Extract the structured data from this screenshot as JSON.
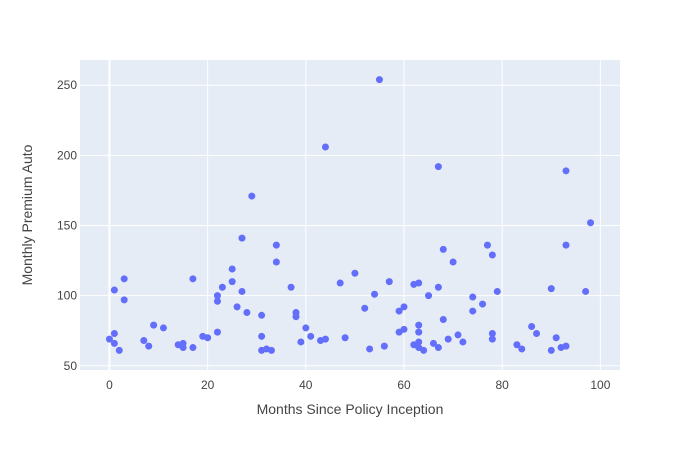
{
  "chart_data": {
    "type": "scatter",
    "title": "",
    "xlabel": "Months Since Policy Inception",
    "ylabel": "Monthly Premium Auto",
    "xlim": [
      -6,
      104
    ],
    "ylim": [
      47,
      268
    ],
    "x_ticks": [
      0,
      20,
      40,
      60,
      80,
      100
    ],
    "y_ticks": [
      50,
      100,
      150,
      200,
      250
    ],
    "grid": true,
    "background": "#e5ecf6",
    "marker_color": "#636efa",
    "series": [
      {
        "points": [
          [
            0,
            69
          ],
          [
            1,
            104
          ],
          [
            1,
            73
          ],
          [
            1,
            66
          ],
          [
            2,
            61
          ],
          [
            3,
            112
          ],
          [
            3,
            97
          ],
          [
            7,
            68
          ],
          [
            8,
            64
          ],
          [
            9,
            79
          ],
          [
            11,
            77
          ],
          [
            14,
            65
          ],
          [
            15,
            66
          ],
          [
            15,
            63
          ],
          [
            17,
            112
          ],
          [
            17,
            63
          ],
          [
            19,
            71
          ],
          [
            20,
            70
          ],
          [
            22,
            100
          ],
          [
            22,
            96
          ],
          [
            22,
            74
          ],
          [
            23,
            106
          ],
          [
            25,
            119
          ],
          [
            25,
            110
          ],
          [
            26,
            92
          ],
          [
            27,
            141
          ],
          [
            27,
            103
          ],
          [
            28,
            88
          ],
          [
            29,
            171
          ],
          [
            31,
            86
          ],
          [
            31,
            71
          ],
          [
            31,
            61
          ],
          [
            32,
            62
          ],
          [
            33,
            61
          ],
          [
            34,
            136
          ],
          [
            34,
            124
          ],
          [
            37,
            106
          ],
          [
            38,
            88
          ],
          [
            38,
            85
          ],
          [
            39,
            67
          ],
          [
            40,
            77
          ],
          [
            41,
            71
          ],
          [
            43,
            68
          ],
          [
            44,
            206
          ],
          [
            44,
            69
          ],
          [
            47,
            109
          ],
          [
            48,
            70
          ],
          [
            50,
            116
          ],
          [
            52,
            91
          ],
          [
            53,
            62
          ],
          [
            54,
            101
          ],
          [
            55,
            254
          ],
          [
            56,
            64
          ],
          [
            57,
            110
          ],
          [
            59,
            89
          ],
          [
            59,
            74
          ],
          [
            60,
            92
          ],
          [
            60,
            76
          ],
          [
            62,
            108
          ],
          [
            62,
            65
          ],
          [
            63,
            109
          ],
          [
            63,
            79
          ],
          [
            63,
            74
          ],
          [
            63,
            67
          ],
          [
            63,
            63
          ],
          [
            64,
            61
          ],
          [
            65,
            100
          ],
          [
            66,
            66
          ],
          [
            67,
            192
          ],
          [
            67,
            106
          ],
          [
            67,
            63
          ],
          [
            68,
            133
          ],
          [
            68,
            83
          ],
          [
            69,
            69
          ],
          [
            70,
            124
          ],
          [
            71,
            72
          ],
          [
            72,
            67
          ],
          [
            74,
            99
          ],
          [
            74,
            89
          ],
          [
            76,
            94
          ],
          [
            77,
            136
          ],
          [
            78,
            129
          ],
          [
            78,
            73
          ],
          [
            78,
            69
          ],
          [
            79,
            103
          ],
          [
            83,
            65
          ],
          [
            84,
            62
          ],
          [
            86,
            78
          ],
          [
            87,
            73
          ],
          [
            90,
            105
          ],
          [
            90,
            61
          ],
          [
            91,
            70
          ],
          [
            92,
            63
          ],
          [
            93,
            189
          ],
          [
            93,
            136
          ],
          [
            93,
            64
          ],
          [
            97,
            103
          ],
          [
            98,
            152
          ]
        ]
      }
    ]
  }
}
